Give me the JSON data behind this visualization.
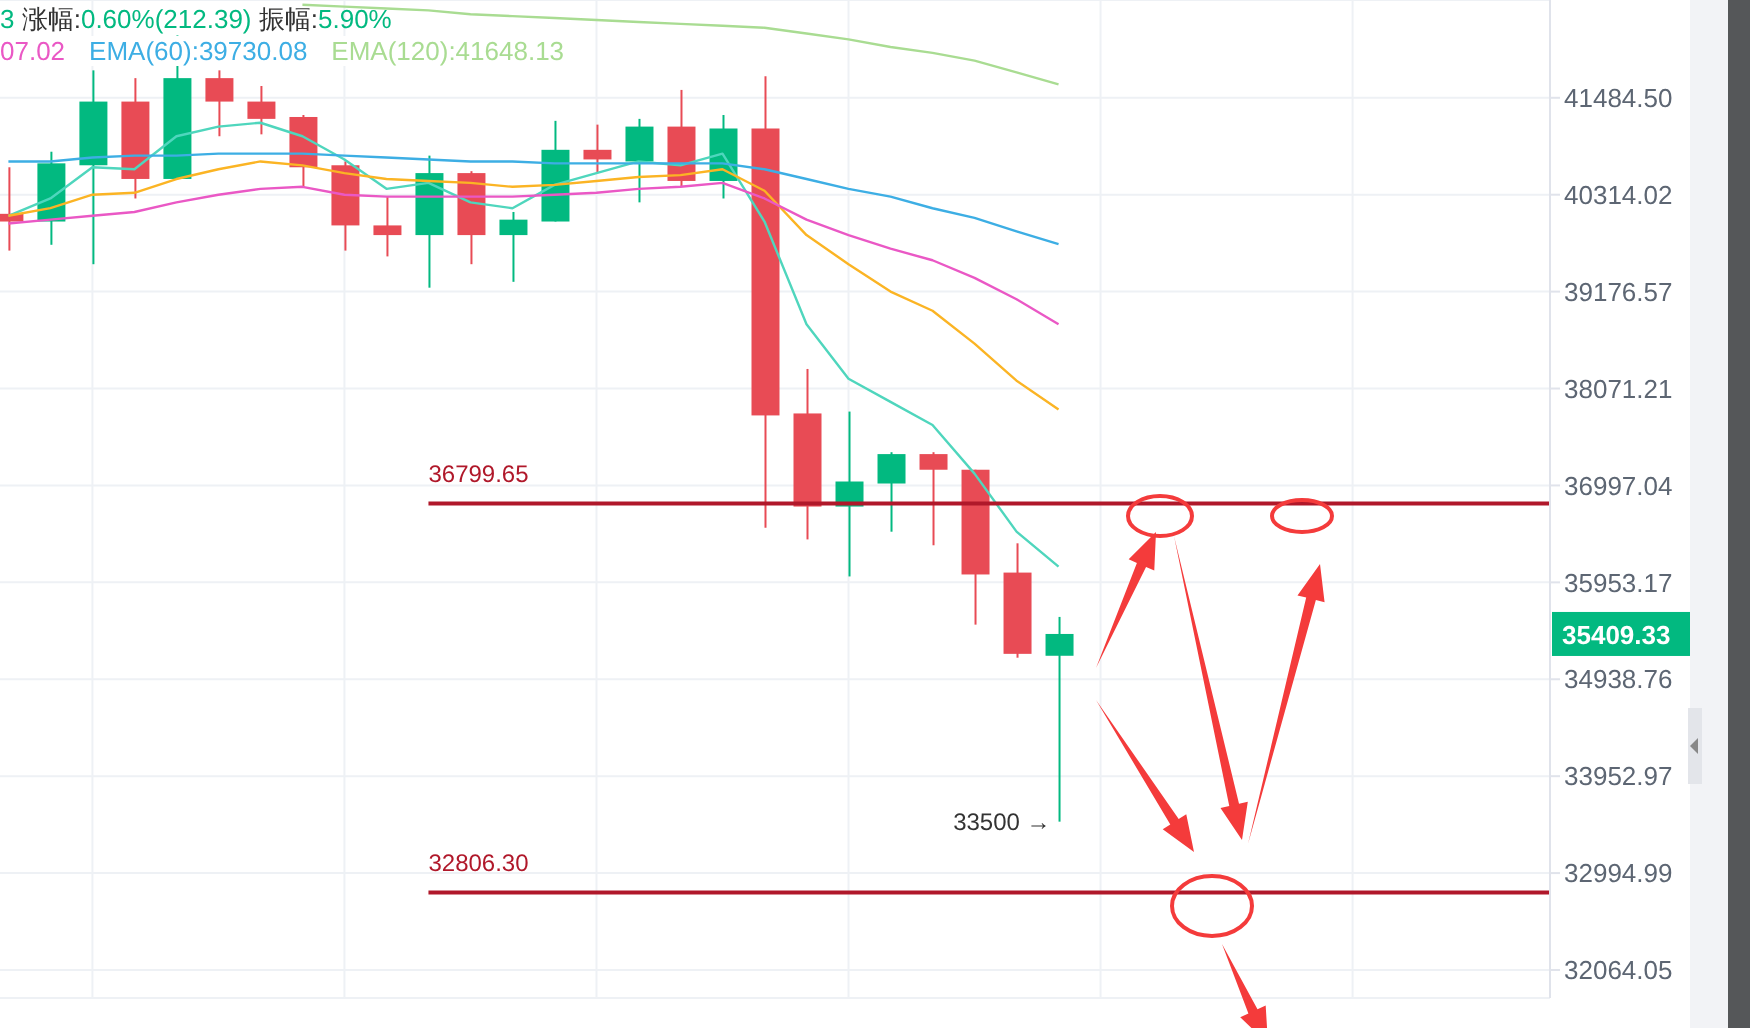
{
  "chart_data": {
    "type": "candlestick",
    "log": true,
    "grid": true,
    "legend": "top left",
    "marker": "none",
    "line_style": "solid",
    "tick_labels": "y",
    "categories": [
      null,
      null,
      null,
      null,
      null,
      null,
      null,
      null,
      null,
      null,
      null,
      null,
      null,
      null,
      null,
      null,
      null,
      null,
      null,
      null,
      null,
      null,
      null,
      null,
      null,
      null,
      null,
      null,
      null,
      null,
      null,
      null,
      null,
      null,
      null,
      null,
      null
    ],
    "ohlc": [
      [
        40087,
        40642,
        39654,
        39996
      ],
      [
        39996,
        40829,
        39722,
        40689
      ],
      [
        40666,
        41822,
        39495,
        41438
      ],
      [
        41438,
        41726,
        40269,
        40502
      ],
      [
        40502,
        42256,
        40502,
        41726
      ],
      [
        41726,
        41822,
        41016,
        41438
      ],
      [
        41438,
        41629,
        41039,
        41227
      ],
      [
        41250,
        41274,
        40408,
        40642
      ],
      [
        40666,
        40712,
        39654,
        39950
      ],
      [
        39950,
        40291,
        39586,
        39836
      ],
      [
        39836,
        40782,
        39222,
        40572
      ],
      [
        40572,
        40595,
        39495,
        39836
      ],
      [
        39836,
        40109,
        39290,
        40018
      ],
      [
        39996,
        41203,
        39996,
        40852
      ],
      [
        40852,
        41157,
        40572,
        40736
      ],
      [
        40712,
        41227,
        40223,
        41133
      ],
      [
        41133,
        41581,
        40408,
        40478
      ],
      [
        40478,
        41274,
        40269,
        41110
      ],
      [
        41110,
        41750,
        36537,
        37770
      ],
      [
        37792,
        38292,
        36412,
        36767
      ],
      [
        36767,
        37813,
        36016,
        37040
      ],
      [
        37018,
        37362,
        36495,
        37341
      ],
      [
        37341,
        37362,
        36349,
        37169
      ],
      [
        37169,
        37169,
        35507,
        36037
      ],
      [
        36057,
        36370,
        35162,
        35202
      ],
      [
        35182,
        35588,
        33500,
        35409.33
      ],
      null,
      null,
      null,
      null,
      null,
      null,
      null,
      null,
      null,
      null,
      null
    ],
    "colors": [
      "#e84b55",
      "#02b980",
      "#02b980",
      "#e84b55",
      "#02b980",
      "#e84b55",
      "#e84b55",
      "#e84b55",
      "#e84b55",
      "#e84b55",
      "#02b980",
      "#e84b55",
      "#02b980",
      "#02b980",
      "#e84b55",
      "#02b980",
      "#e84b55",
      "#02b980",
      "#e84b55",
      "#e84b55",
      "#02b980",
      "#02b980",
      "#e84b55",
      "#e84b55",
      "#e84b55",
      "#02b980",
      null,
      null,
      null,
      null,
      null,
      null,
      null,
      null,
      null,
      null,
      null
    ],
    "series": [
      {
        "type": "line",
        "color": "#4fd6bd",
        "values": [
          40064,
          40269,
          40642,
          40618,
          41016,
          41133,
          41180,
          41016,
          40735,
          40384,
          40455,
          40223,
          40153,
          40431,
          40572,
          40712,
          40665,
          40806,
          39996,
          38801,
          38182,
          37921,
          37663,
          37126,
          36496,
          36120,
          null,
          null,
          null,
          null,
          null,
          null,
          null,
          null,
          null,
          null,
          null
        ]
      },
      {
        "type": "line",
        "color": "#fbb424",
        "values": [
          40064,
          40155,
          40314,
          40337,
          40501,
          40618,
          40712,
          40665,
          40572,
          40501,
          40478,
          40455,
          40408,
          40431,
          40478,
          40525,
          40548,
          40618,
          40361,
          39836,
          39495,
          39177,
          38956,
          38580,
          38160,
          37835,
          null,
          null,
          null,
          null,
          null,
          null,
          null,
          null,
          null,
          null,
          null
        ]
      },
      {
        "type": "line",
        "name": "07.02",
        "color": "#ea58c5",
        "values": [
          39973,
          40018,
          40064,
          40109,
          40223,
          40314,
          40384,
          40408,
          40314,
          40291,
          40291,
          40291,
          40291,
          40314,
          40337,
          40384,
          40408,
          40455,
          40269,
          40018,
          39836,
          39677,
          39541,
          39336,
          39088,
          38801,
          null,
          null,
          null,
          null,
          null,
          null,
          null,
          null,
          null,
          null,
          null
        ]
      },
      {
        "type": "line",
        "name": "EMA(60):39730.08",
        "color": "#3daee4",
        "values": [
          40712,
          40712,
          40759,
          40782,
          40782,
          40806,
          40806,
          40806,
          40782,
          40759,
          40735,
          40712,
          40712,
          40689,
          40689,
          40689,
          40689,
          40689,
          40618,
          40501,
          40384,
          40291,
          40153,
          40040,
          39881,
          39730.08,
          null,
          null,
          null,
          null,
          null,
          null,
          null,
          null,
          null,
          null,
          null
        ]
      },
      {
        "type": "line",
        "name": "EMA(120):41648.13",
        "color": "#a9dc92",
        "values": [
          null,
          null,
          null,
          null,
          null,
          null,
          null,
          42641,
          42617,
          42593,
          42569,
          42521,
          42497,
          42473,
          42449,
          42424,
          42400,
          42376,
          42352,
          42280,
          42207,
          42111,
          42039,
          41942,
          41798,
          41648.13,
          null,
          null,
          null,
          null,
          null,
          null,
          null,
          null,
          null,
          null,
          null
        ]
      }
    ],
    "ylim": [
      31800,
      42700
    ],
    "yticks": [
      {
        "value": 32064.05,
        "label": "32064.05"
      },
      {
        "value": 32994.99,
        "label": "32994.99"
      },
      {
        "value": 33952.97,
        "label": "33952.97"
      },
      {
        "value": 34938.76,
        "label": "34938.76"
      },
      {
        "value": 35953.17,
        "label": "35953.17"
      },
      {
        "value": 36997.04,
        "label": "36997.04"
      },
      {
        "value": 38071.21,
        "label": "38071.21"
      },
      {
        "value": 39176.57,
        "label": "39176.57"
      },
      {
        "value": 40314.02,
        "label": "40314.02"
      },
      {
        "value": 41484.5,
        "label": "41484.50"
      }
    ],
    "ref_lines": [
      {
        "axis": "y",
        "value": 36799.65,
        "label": "36799.65",
        "color": "#b0182a"
      },
      {
        "axis": "y",
        "value": 32806.3,
        "label": "32806.30",
        "color": "#b0182a"
      }
    ],
    "annotations": [
      "3 涨幅:0.60%(212.39) 振幅:5.90%",
      "35409.33",
      "33500 →"
    ]
  }
}
